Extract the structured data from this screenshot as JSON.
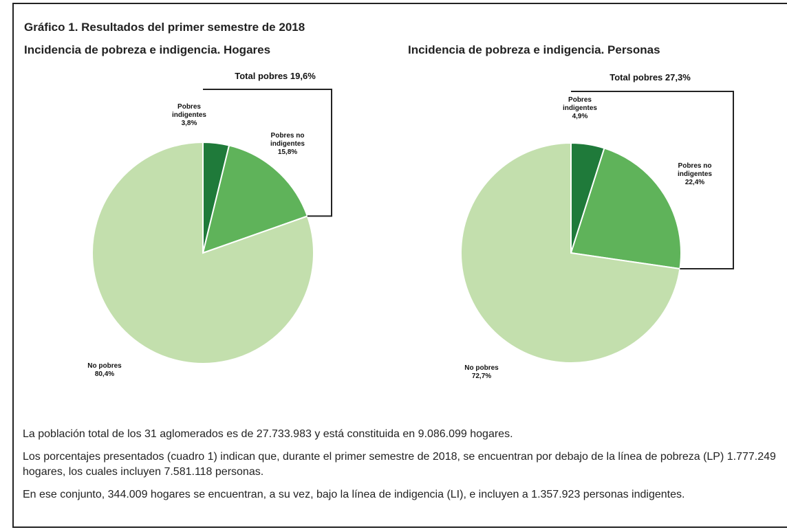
{
  "title": "Gráfico 1. Resultados del primer semestre de 2018",
  "chart_data": [
    {
      "type": "pie",
      "title": "Incidencia de pobreza e indigencia. Hogares",
      "annotation": "Total pobres 19,6%",
      "categories": [
        "Pobres indigentes",
        "Pobres no indigentes",
        "No pobres"
      ],
      "values": [
        3.8,
        15.8,
        80.4
      ],
      "value_labels": [
        "3,8%",
        "15,8%",
        "80,4%"
      ],
      "colors": [
        "#1f7a3a",
        "#5fb35a",
        "#c3dfad"
      ]
    },
    {
      "type": "pie",
      "title": "Incidencia de pobreza e indigencia. Personas",
      "annotation": "Total pobres 27,3%",
      "categories": [
        "Pobres indigentes",
        "Pobres no indigentes",
        "No pobres"
      ],
      "values": [
        4.9,
        22.4,
        72.7
      ],
      "value_labels": [
        "4,9%",
        "22,4%",
        "72,7%"
      ],
      "colors": [
        "#1f7a3a",
        "#5fb35a",
        "#c3dfad"
      ]
    }
  ],
  "paragraphs": [
    "La población total de los 31 aglomerados es de 27.733.983 y está constituida en 9.086.099 hogares.",
    "Los porcentajes presentados (cuadro 1) indican que, durante el primer semestre de 2018, se encuentran por debajo de la línea de pobreza (LP) 1.777.249 hogares, los cuales incluyen 7.581.118 personas.",
    "En ese conjunto, 344.009 hogares se encuentran, a su vez, bajo la línea de indigencia (LI), e incluyen a 1.357.923 personas indigentes."
  ]
}
